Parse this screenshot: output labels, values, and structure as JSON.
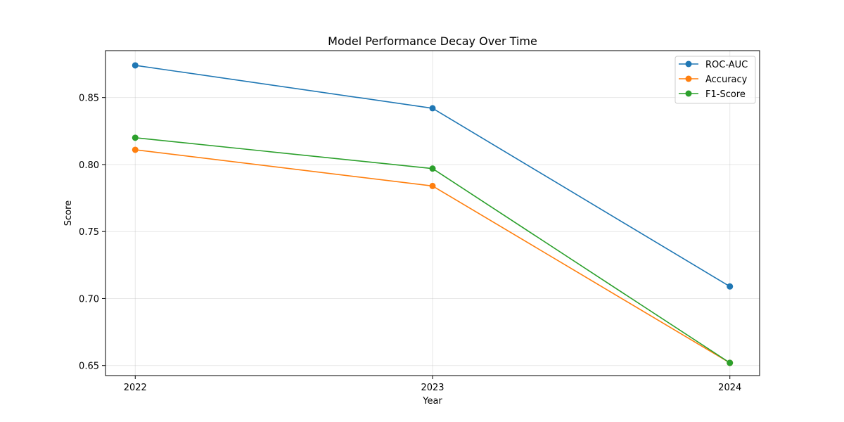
{
  "chart_data": {
    "type": "line",
    "title": "Model Performance Decay Over Time",
    "xlabel": "Year",
    "ylabel": "Score",
    "categories": [
      "2022",
      "2023",
      "2024"
    ],
    "x": [
      2022,
      2023,
      2024
    ],
    "xlim": [
      2021.9,
      2024.1
    ],
    "ylim": [
      0.6425,
      0.885
    ],
    "yticks": [
      "0.65",
      "0.70",
      "0.75",
      "0.80",
      "0.85"
    ],
    "grid": true,
    "legend_position": "top-right",
    "series": [
      {
        "name": "ROC-AUC",
        "color": "#1f77b4",
        "values": [
          0.874,
          0.842,
          0.709
        ]
      },
      {
        "name": "Accuracy",
        "color": "#ff7f0e",
        "values": [
          0.811,
          0.784,
          0.652
        ]
      },
      {
        "name": "F1-Score",
        "color": "#2ca02c",
        "values": [
          0.82,
          0.797,
          0.652
        ]
      }
    ]
  }
}
